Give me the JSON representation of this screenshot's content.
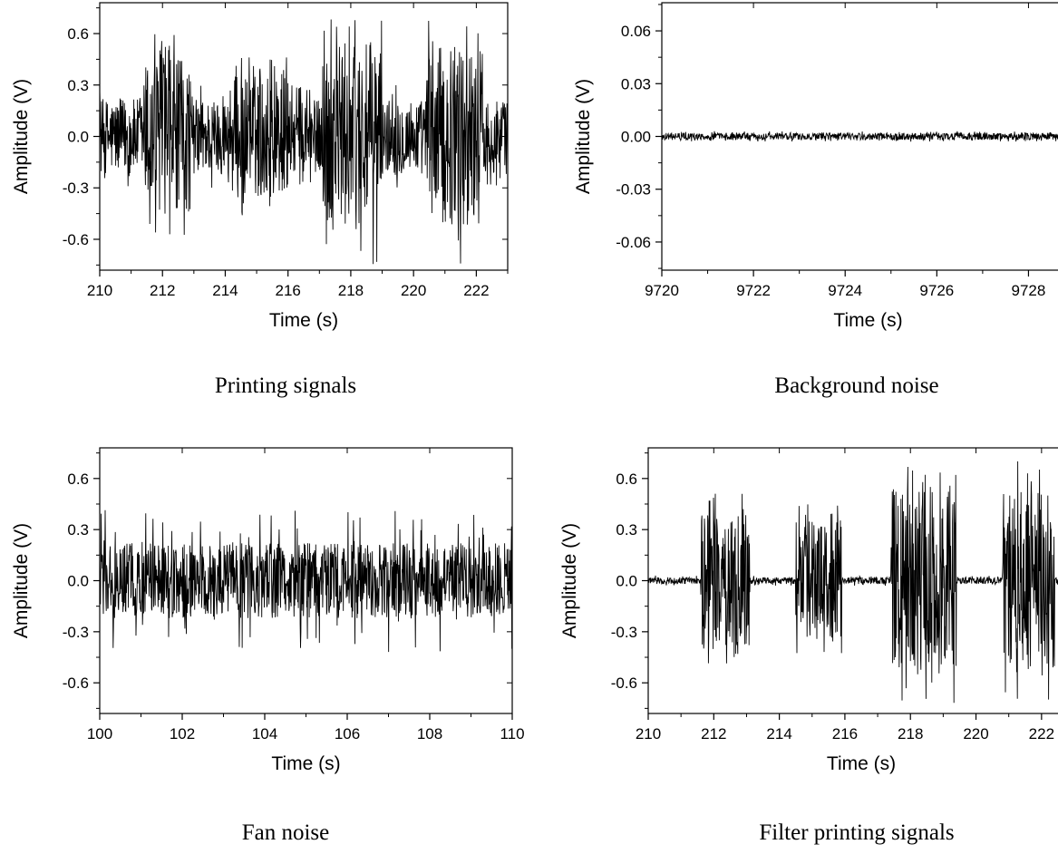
{
  "chart_data": [
    {
      "type": "line",
      "caption": "Printing signals",
      "xlabel": "Time (s)",
      "ylabel": "Amplitude (V)",
      "xlim": [
        210,
        223
      ],
      "ylim": [
        -0.78,
        0.78
      ],
      "xticks": [
        210,
        212,
        214,
        216,
        218,
        220,
        222
      ],
      "xtick_labels": [
        "210",
        "212",
        "214",
        "216",
        "218",
        "220",
        "222"
      ],
      "yticks": [
        -0.6,
        -0.3,
        0.0,
        0.3,
        0.6
      ],
      "ytick_labels": [
        "-0.6",
        "-0.3",
        "0.0",
        "0.3",
        "0.6"
      ],
      "baseline_amplitude": 0.22,
      "baseline_peak": 0.3,
      "bursts": [
        {
          "start": 211.4,
          "end": 212.9,
          "amplitude": 0.45,
          "peak": 0.62
        },
        {
          "start": 214.2,
          "end": 216.0,
          "amplitude": 0.36,
          "peak": 0.47
        },
        {
          "start": 217.1,
          "end": 219.0,
          "amplitude": 0.55,
          "peak": 0.75
        },
        {
          "start": 220.4,
          "end": 222.2,
          "amplitude": 0.52,
          "peak": 0.78
        }
      ]
    },
    {
      "type": "line",
      "caption": "Background noise",
      "xlabel": "Time (s)",
      "ylabel": "Amplitude (V)",
      "xlim": [
        9720,
        9729
      ],
      "ylim": [
        -0.076,
        0.076
      ],
      "xticks": [
        9720,
        9722,
        9724,
        9726,
        9728
      ],
      "xtick_labels": [
        "9720",
        "9722",
        "9724",
        "9726",
        "9728"
      ],
      "yticks": [
        -0.06,
        -0.03,
        0.0,
        0.03,
        0.06
      ],
      "ytick_labels": [
        "-0.06",
        "-0.03",
        "0.00",
        "0.03",
        "0.06"
      ],
      "baseline_amplitude": 0.002,
      "baseline_peak": 0.003,
      "bursts": []
    },
    {
      "type": "line",
      "caption": "Fan noise",
      "xlabel": "Time (s)",
      "ylabel": "Amplitude (V)",
      "xlim": [
        100,
        110
      ],
      "ylim": [
        -0.78,
        0.78
      ],
      "xticks": [
        100,
        102,
        104,
        106,
        108,
        110
      ],
      "xtick_labels": [
        "100",
        "102",
        "104",
        "106",
        "108",
        "110"
      ],
      "yticks": [
        -0.6,
        -0.3,
        0.0,
        0.3,
        0.6
      ],
      "ytick_labels": [
        "-0.6",
        "-0.3",
        "0.0",
        "0.3",
        "0.6"
      ],
      "baseline_amplitude": 0.22,
      "baseline_peak": 0.42,
      "bursts": []
    },
    {
      "type": "line",
      "caption": "Filter printing signals",
      "xlabel": "Time (s)",
      "ylabel": "Amplitude (V)",
      "xlim": [
        210,
        223
      ],
      "ylim": [
        -0.78,
        0.78
      ],
      "xticks": [
        210,
        212,
        214,
        216,
        218,
        220,
        222
      ],
      "xtick_labels": [
        "210",
        "212",
        "214",
        "216",
        "218",
        "220",
        "222"
      ],
      "yticks": [
        -0.6,
        -0.3,
        0.0,
        0.3,
        0.6
      ],
      "ytick_labels": [
        "-0.6",
        "-0.3",
        "0.0",
        "0.3",
        "0.6"
      ],
      "baseline_amplitude": 0.02,
      "baseline_peak": 0.03,
      "bursts": [
        {
          "start": 211.6,
          "end": 213.1,
          "amplitude": 0.42,
          "peak": 0.53
        },
        {
          "start": 214.5,
          "end": 215.9,
          "amplitude": 0.36,
          "peak": 0.45
        },
        {
          "start": 217.4,
          "end": 219.4,
          "amplitude": 0.55,
          "peak": 0.72
        },
        {
          "start": 220.8,
          "end": 222.4,
          "amplitude": 0.52,
          "peak": 0.71
        }
      ]
    }
  ]
}
